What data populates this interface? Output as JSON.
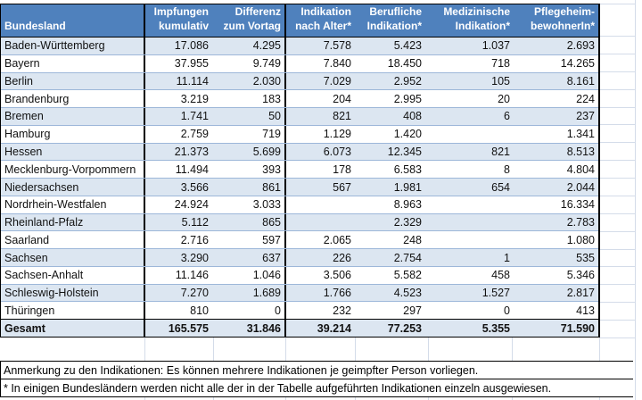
{
  "table": {
    "header": {
      "col0": {
        "line1": "",
        "line2": "Bundesland"
      },
      "cols": [
        {
          "line1": "Impfungen",
          "line2": "kumulativ"
        },
        {
          "line1": "Differenz",
          "line2": "zum Vortag"
        },
        {
          "line1": "Indikation",
          "line2": "nach Alter*"
        },
        {
          "line1": "Berufliche",
          "line2": "Indikation*"
        },
        {
          "line1": "Medizinische",
          "line2": "Indikation*"
        },
        {
          "line1": "Pflegeheim-",
          "line2": "bewohnerIn*"
        }
      ]
    },
    "rows": [
      {
        "name": "Baden-Württemberg",
        "values": [
          "17.086",
          "4.295",
          "7.578",
          "5.423",
          "1.037",
          "2.693"
        ]
      },
      {
        "name": "Bayern",
        "values": [
          "37.955",
          "9.749",
          "7.840",
          "18.450",
          "718",
          "14.265"
        ]
      },
      {
        "name": "Berlin",
        "values": [
          "11.114",
          "2.030",
          "7.029",
          "2.952",
          "105",
          "8.161"
        ]
      },
      {
        "name": "Brandenburg",
        "values": [
          "3.219",
          "183",
          "204",
          "2.995",
          "20",
          "224"
        ]
      },
      {
        "name": "Bremen",
        "values": [
          "1.741",
          "50",
          "821",
          "408",
          "6",
          "237"
        ]
      },
      {
        "name": "Hamburg",
        "values": [
          "2.759",
          "719",
          "1.129",
          "1.420",
          "",
          "1.341"
        ]
      },
      {
        "name": "Hessen",
        "values": [
          "21.373",
          "5.699",
          "6.073",
          "12.345",
          "821",
          "8.513"
        ]
      },
      {
        "name": "Mecklenburg-Vorpommern",
        "values": [
          "11.494",
          "393",
          "178",
          "6.583",
          "8",
          "4.804"
        ]
      },
      {
        "name": "Niedersachsen",
        "values": [
          "3.566",
          "861",
          "567",
          "1.981",
          "654",
          "2.044"
        ]
      },
      {
        "name": "Nordrhein-Westfalen",
        "values": [
          "24.924",
          "3.033",
          "",
          "8.963",
          "",
          "16.334"
        ]
      },
      {
        "name": "Rheinland-Pfalz",
        "values": [
          "5.112",
          "865",
          "",
          "2.329",
          "",
          "2.783"
        ]
      },
      {
        "name": "Saarland",
        "values": [
          "2.716",
          "597",
          "2.065",
          "248",
          "",
          "1.080"
        ]
      },
      {
        "name": "Sachsen",
        "values": [
          "3.290",
          "637",
          "226",
          "2.754",
          "1",
          "535"
        ]
      },
      {
        "name": "Sachsen-Anhalt",
        "values": [
          "11.146",
          "1.046",
          "3.506",
          "5.582",
          "458",
          "5.346"
        ]
      },
      {
        "name": "Schleswig-Holstein",
        "values": [
          "7.270",
          "1.689",
          "1.766",
          "4.523",
          "1.527",
          "2.817"
        ]
      },
      {
        "name": "Thüringen",
        "values": [
          "810",
          "0",
          "232",
          "297",
          "0",
          "413"
        ]
      }
    ],
    "total": {
      "name": "Gesamt",
      "values": [
        "165.575",
        "31.846",
        "39.214",
        "77.253",
        "5.355",
        "71.590"
      ]
    }
  },
  "notes": [
    "Anmerkung zu den Indikationen: Es können mehrere Indikationen je geimpfter Person vorliegen.",
    "* In einigen Bundesländern werden nicht alle der in der Tabelle aufgeführten Indikationen einzeln ausgewiesen."
  ],
  "colors": {
    "header_bg": "#4F81BD",
    "band_bg": "#DCE6F1",
    "row_border": "#9DB7D9",
    "grid": "#D4DCE9",
    "border": "#000000"
  }
}
